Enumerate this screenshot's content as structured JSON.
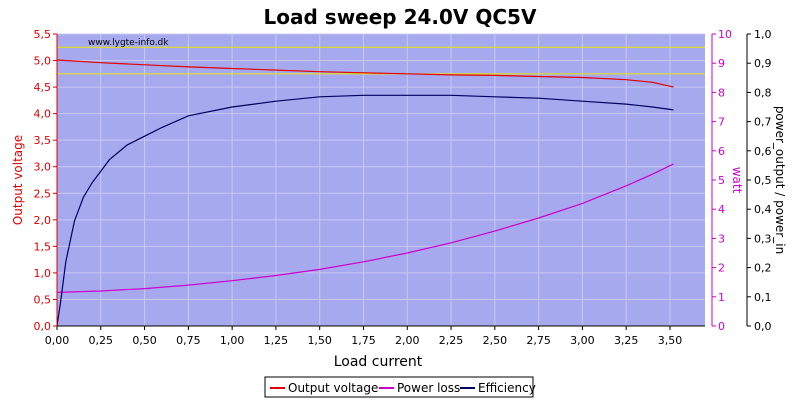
{
  "chart_data": {
    "type": "line",
    "title": "Load sweep 24.0V QC5V",
    "watermark": "www.lygte-info.dk",
    "xlabel": "Load current",
    "xlim": [
      0,
      3.7
    ],
    "x_ticks": [
      "0,00",
      "0,25",
      "0,50",
      "0,75",
      "1,00",
      "1,25",
      "1,50",
      "1,75",
      "2,00",
      "2,25",
      "2,50",
      "2,75",
      "3,00",
      "3,25",
      "3,50"
    ],
    "y_left": {
      "label": "Output voltage",
      "lim": [
        0,
        5.5
      ],
      "ticks": [
        "0,0",
        "0,5",
        "1,0",
        "1,5",
        "2,0",
        "2,5",
        "3,0",
        "3,5",
        "4,0",
        "4,5",
        "5,0",
        "5,5"
      ],
      "color": "#e00000"
    },
    "y_right1": {
      "label": "watt",
      "lim": [
        0,
        10
      ],
      "ticks": [
        "0",
        "1",
        "2",
        "3",
        "4",
        "5",
        "6",
        "7",
        "8",
        "9",
        "10"
      ],
      "color": "#cc00cc"
    },
    "y_right2": {
      "label": "power_output / power_in",
      "lim": [
        0,
        1
      ],
      "ticks": [
        "0,0",
        "0,1",
        "0,2",
        "0,3",
        "0,4",
        "0,5",
        "0,6",
        "0,7",
        "0,8",
        "0,9",
        "1,0"
      ],
      "color": "#000000"
    },
    "reference_lines_voltage": [
      5.25,
      4.75
    ],
    "reference_line_color": "#e8e800",
    "plot_bg": "#a7a9ef",
    "grid": true,
    "legend_position": "bottom",
    "series": [
      {
        "name": "Output voltage",
        "axis": "left",
        "color": "#e00000",
        "x": [
          0,
          0.25,
          0.5,
          0.75,
          1.0,
          1.25,
          1.5,
          1.75,
          2.0,
          2.25,
          2.5,
          2.75,
          3.0,
          3.25,
          3.4,
          3.52
        ],
        "y": [
          5.01,
          4.96,
          4.92,
          4.88,
          4.85,
          4.82,
          4.79,
          4.77,
          4.75,
          4.73,
          4.72,
          4.7,
          4.68,
          4.64,
          4.59,
          4.5
        ]
      },
      {
        "name": "Power loss",
        "axis": "right1",
        "color": "#cc00cc",
        "x": [
          0,
          0.25,
          0.5,
          0.75,
          1.0,
          1.25,
          1.5,
          1.75,
          2.0,
          2.25,
          2.5,
          2.75,
          3.0,
          3.25,
          3.4,
          3.52
        ],
        "y": [
          1.15,
          1.2,
          1.28,
          1.4,
          1.55,
          1.73,
          1.94,
          2.2,
          2.5,
          2.85,
          3.25,
          3.7,
          4.2,
          4.8,
          5.2,
          5.55
        ]
      },
      {
        "name": "Efficiency",
        "axis": "right2",
        "color": "#000060",
        "x": [
          0,
          0.02,
          0.05,
          0.1,
          0.15,
          0.2,
          0.3,
          0.4,
          0.5,
          0.6,
          0.75,
          1.0,
          1.25,
          1.5,
          1.75,
          2.0,
          2.25,
          2.5,
          2.75,
          3.0,
          3.25,
          3.4,
          3.52
        ],
        "y": [
          0.0,
          0.08,
          0.22,
          0.36,
          0.44,
          0.49,
          0.57,
          0.62,
          0.65,
          0.68,
          0.72,
          0.75,
          0.77,
          0.785,
          0.79,
          0.79,
          0.79,
          0.785,
          0.78,
          0.77,
          0.76,
          0.75,
          0.74
        ]
      }
    ]
  }
}
